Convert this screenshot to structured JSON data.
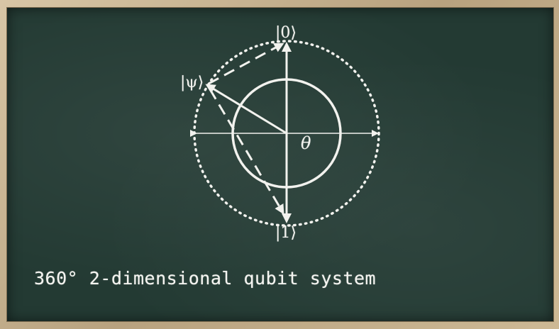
{
  "labels": {
    "ket_zero": "|0⟩",
    "ket_one": "|1⟩",
    "ket_psi": "|ψ⟩",
    "theta": "θ"
  },
  "caption": "360° 2-dimensional qubit system",
  "colors": {
    "chalkboard": "#233a33",
    "chalk": "#f2f2ee",
    "frame": "#c9b79a"
  }
}
